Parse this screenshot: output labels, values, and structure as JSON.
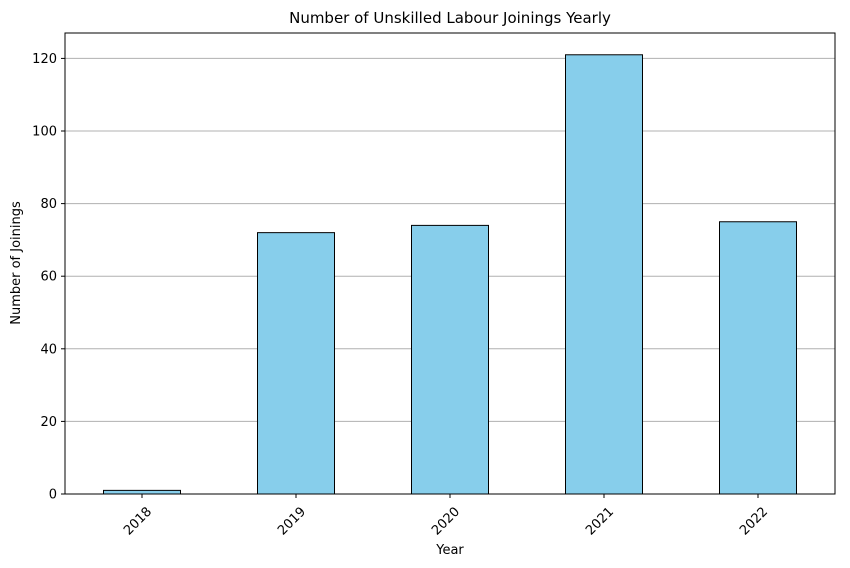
{
  "chart_data": {
    "type": "bar",
    "title": "Number of Unskilled Labour Joinings Yearly",
    "xlabel": "Year",
    "ylabel": "Number of Joinings",
    "categories": [
      "2018",
      "2019",
      "2020",
      "2021",
      "2022"
    ],
    "values": [
      1,
      72,
      74,
      121,
      75
    ],
    "ylim": [
      0,
      127
    ],
    "yticks": [
      0,
      20,
      40,
      60,
      80,
      100,
      120
    ],
    "grid": "y-major",
    "bar_color": "#87CEEB",
    "bar_edge_color": "#000000",
    "grid_color": "#b0b0b0"
  }
}
